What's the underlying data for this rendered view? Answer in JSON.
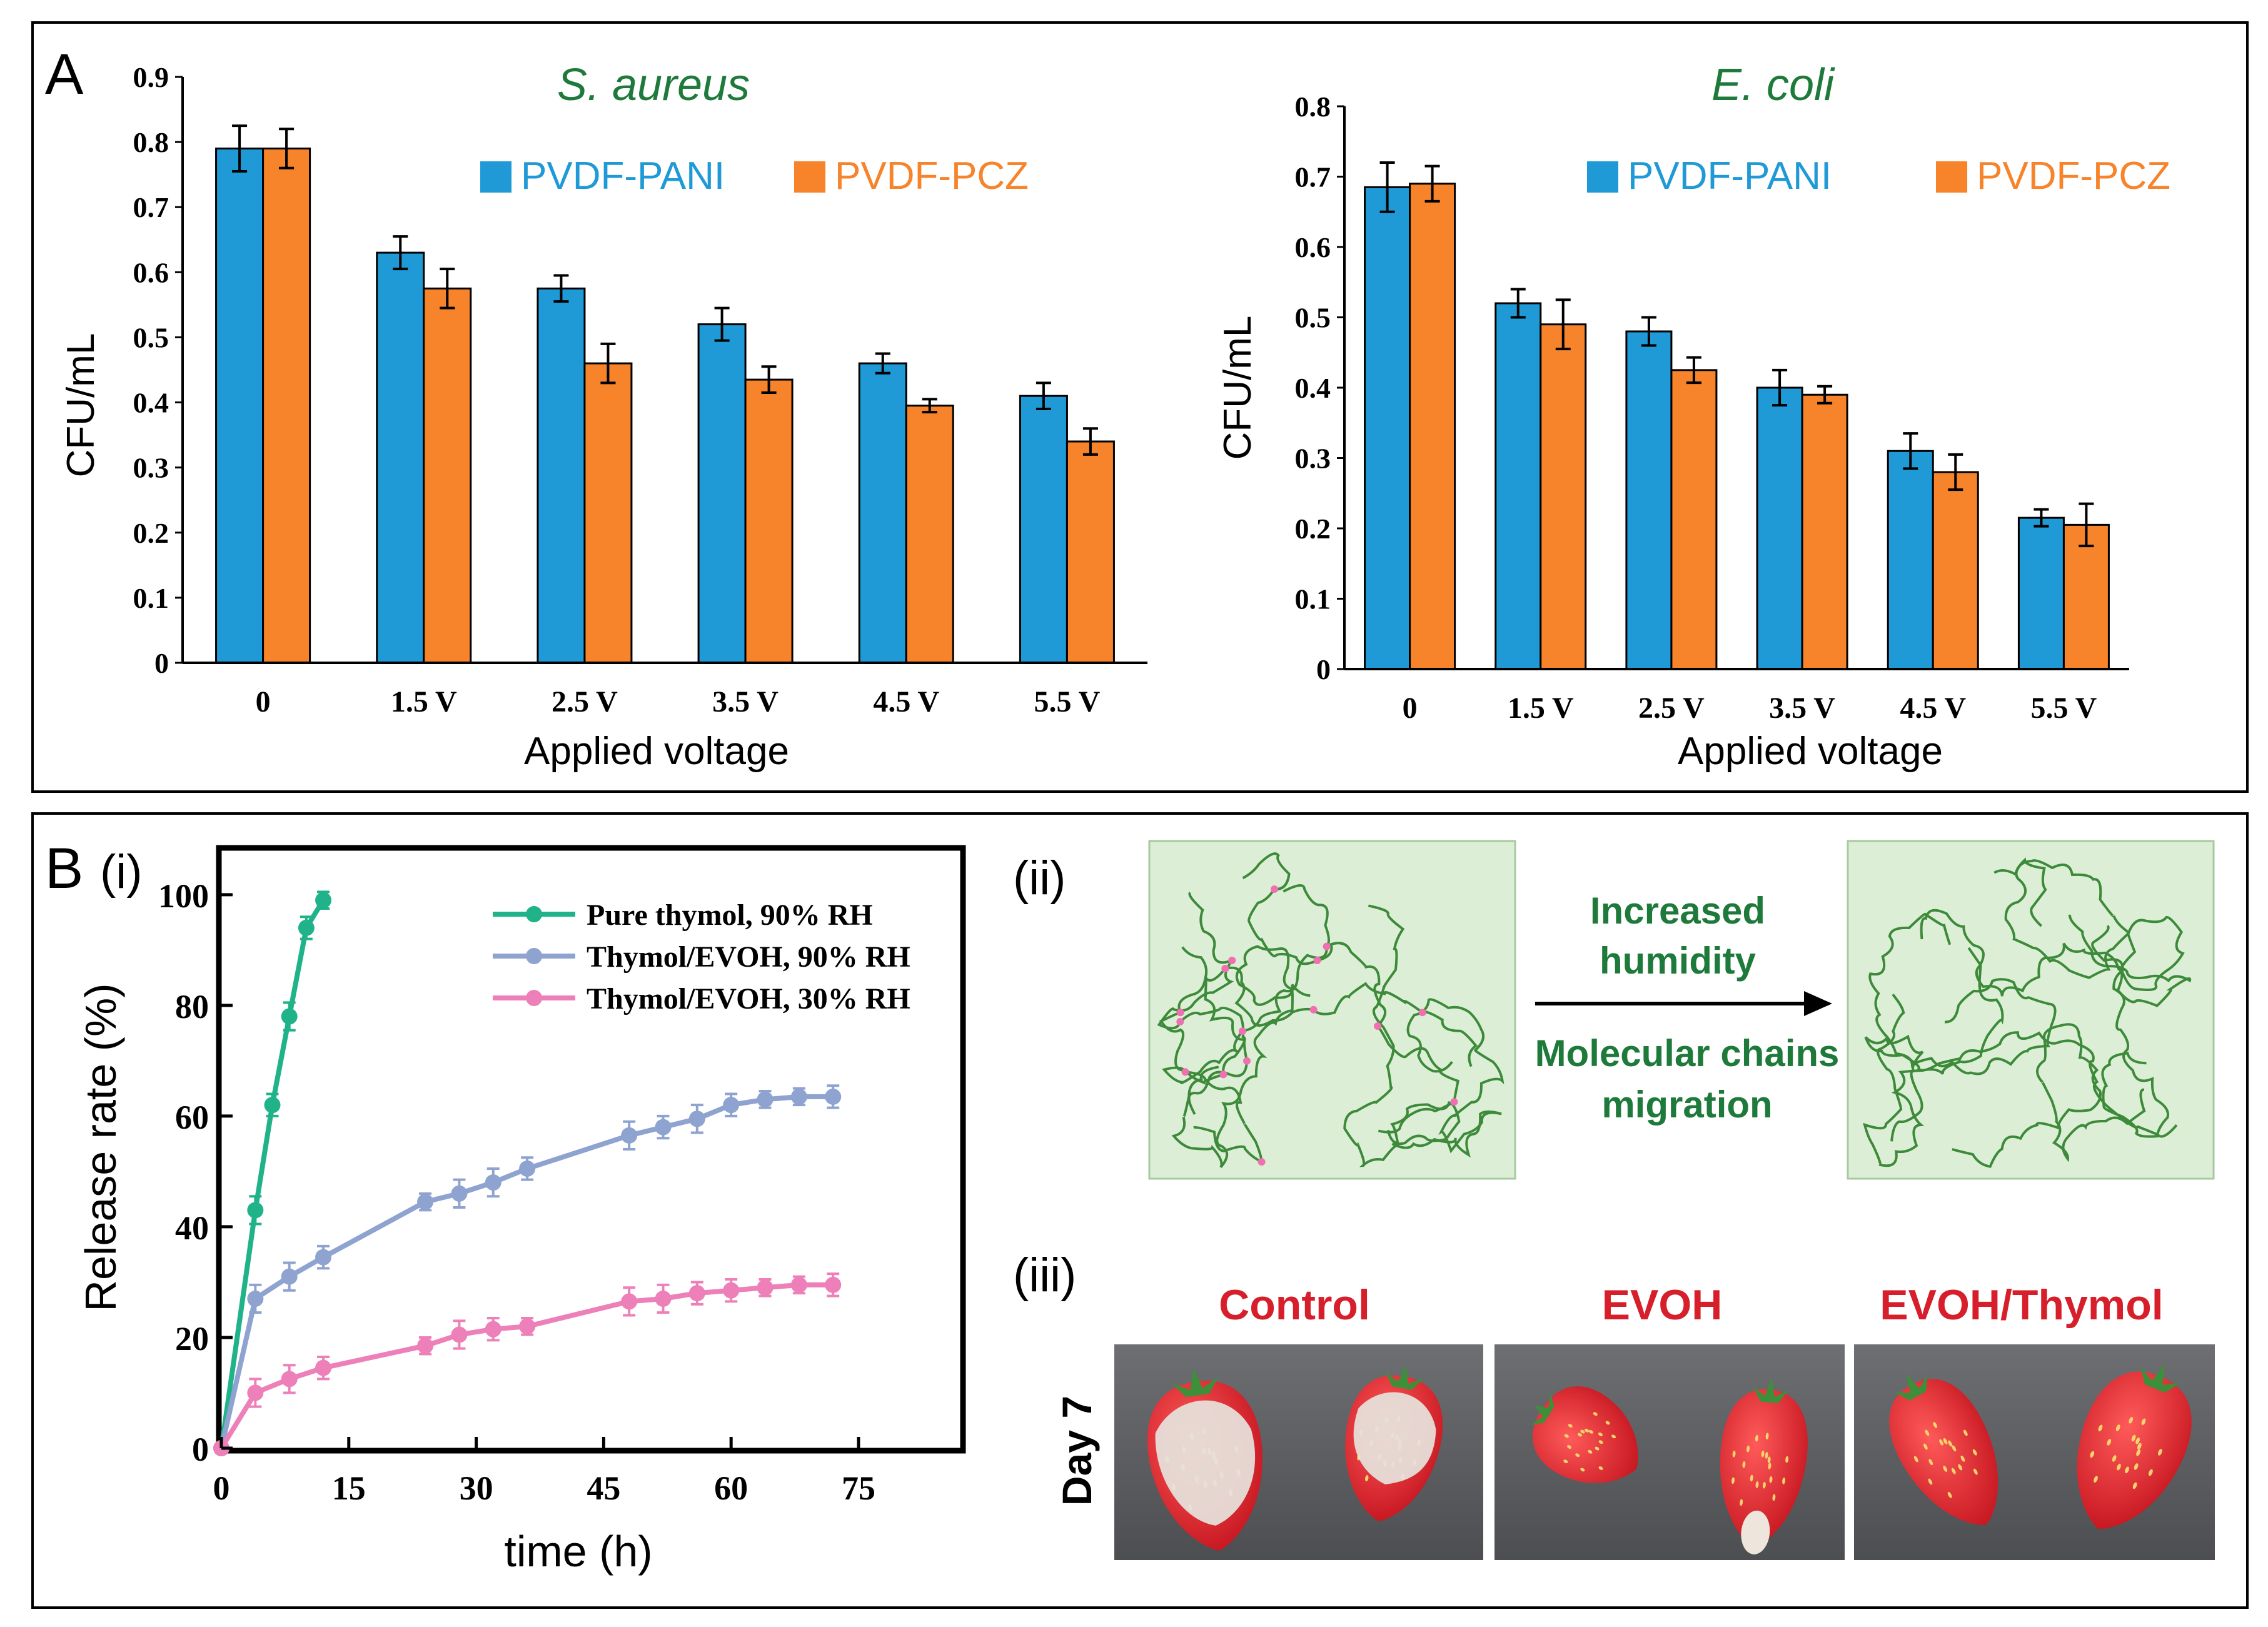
{
  "panels": {
    "A_label": "A",
    "B_label": "B",
    "B_i_label": "(i)",
    "B_ii_label": "(ii)",
    "B_iii_label": "(iii)"
  },
  "colors": {
    "pani": "#1f9ad6",
    "pcz": "#f7832a",
    "green_title": "#1e7a3a",
    "pure_thymol": "#20b38a",
    "evoh90": "#8ea3cf",
    "evoh30": "#ee80b9",
    "red_text": "#d61f2b",
    "box_fill": "#dcefd6",
    "chain": "#3d8a3a",
    "crosslink": "#f06fb0"
  },
  "chart_data": [
    {
      "id": "saureus",
      "type": "bar",
      "title": "S. aureus",
      "xlabel": "Applied voltage",
      "ylabel": "CFU/mL",
      "ylim": [
        0,
        0.9
      ],
      "yticks": [
        "0",
        "0.1",
        "0.2",
        "0.3",
        "0.4",
        "0.5",
        "0.6",
        "0.7",
        "0.8",
        "0.9"
      ],
      "categories": [
        "0",
        "1.5 V",
        "2.5 V",
        "3.5 V",
        "4.5 V",
        "5.5 V"
      ],
      "legend": [
        "PVDF-PANI",
        "PVDF-PCZ"
      ],
      "series": [
        {
          "name": "PVDF-PANI",
          "values": [
            0.79,
            0.63,
            0.575,
            0.52,
            0.46,
            0.41
          ],
          "errors": [
            0.035,
            0.025,
            0.02,
            0.025,
            0.015,
            0.02
          ]
        },
        {
          "name": "PVDF-PCZ",
          "values": [
            0.79,
            0.575,
            0.46,
            0.435,
            0.395,
            0.34
          ],
          "errors": [
            0.03,
            0.03,
            0.03,
            0.02,
            0.01,
            0.02
          ]
        }
      ]
    },
    {
      "id": "ecoli",
      "type": "bar",
      "title": "E. coli",
      "xlabel": "Applied voltage",
      "ylabel": "CFU/mL",
      "ylim": [
        0,
        0.8
      ],
      "yticks": [
        "0",
        "0.1",
        "0.2",
        "0.3",
        "0.4",
        "0.5",
        "0.6",
        "0.7",
        "0.8"
      ],
      "categories": [
        "0",
        "1.5 V",
        "2.5 V",
        "3.5 V",
        "4.5 V",
        "5.5 V"
      ],
      "legend": [
        "PVDF-PANI",
        "PVDF-PCZ"
      ],
      "series": [
        {
          "name": "PVDF-PANI",
          "values": [
            0.685,
            0.52,
            0.48,
            0.4,
            0.31,
            0.215
          ],
          "errors": [
            0.035,
            0.02,
            0.02,
            0.025,
            0.025,
            0.012
          ]
        },
        {
          "name": "PVDF-PCZ",
          "values": [
            0.69,
            0.49,
            0.425,
            0.39,
            0.28,
            0.205
          ],
          "errors": [
            0.025,
            0.035,
            0.018,
            0.012,
            0.025,
            0.03
          ]
        }
      ]
    },
    {
      "id": "release",
      "type": "line",
      "xlabel": "time (h)",
      "ylabel": "Release rate (%)",
      "xlim": [
        0,
        87
      ],
      "ylim": [
        0,
        108
      ],
      "xticks": [
        "0",
        "15",
        "30",
        "45",
        "60",
        "75"
      ],
      "yticks": [
        "0",
        "20",
        "40",
        "60",
        "80",
        "100"
      ],
      "series": [
        {
          "name": "Pure thymol, 90% RH",
          "x": [
            0,
            4,
            6,
            8,
            10,
            12
          ],
          "y": [
            0,
            43,
            62,
            78,
            94,
            99
          ],
          "errors": [
            0,
            2.5,
            2,
            2.5,
            2,
            1.5
          ]
        },
        {
          "name": "Thymol/EVOH, 90% RH",
          "x": [
            0,
            4,
            8,
            12,
            24,
            28,
            32,
            36,
            48,
            52,
            56,
            60,
            64,
            68,
            72
          ],
          "y": [
            0,
            27,
            31,
            34.5,
            44.5,
            46,
            48,
            50.5,
            56.5,
            58,
            59.5,
            62,
            63,
            63.5,
            63.5
          ],
          "errors": [
            0,
            2.5,
            2.5,
            2,
            1.5,
            2.5,
            2.5,
            2,
            2.5,
            2,
            2.5,
            2,
            1.5,
            1.5,
            2
          ]
        },
        {
          "name": "Thymol/EVOH, 30% RH",
          "x": [
            0,
            4,
            8,
            12,
            24,
            28,
            32,
            36,
            48,
            52,
            56,
            60,
            64,
            68,
            72
          ],
          "y": [
            0,
            10,
            12.5,
            14.5,
            18.5,
            20.5,
            21.5,
            22,
            26.5,
            27,
            28,
            28.5,
            29,
            29.5,
            29.5
          ],
          "errors": [
            0,
            2.5,
            2.5,
            2,
            1.5,
            2.5,
            2,
            1.5,
            2.5,
            2.5,
            2,
            2,
            1.5,
            1.5,
            2
          ]
        }
      ]
    }
  ],
  "diagram": {
    "arrow_top_line1": "Increased",
    "arrow_top_line2": "humidity",
    "arrow_bottom_line1": "Molecular chains",
    "arrow_bottom_line2": "migration"
  },
  "photos": {
    "day_label": "Day 7",
    "labels": [
      "Control",
      "EVOH",
      "EVOH/Thymol"
    ]
  }
}
